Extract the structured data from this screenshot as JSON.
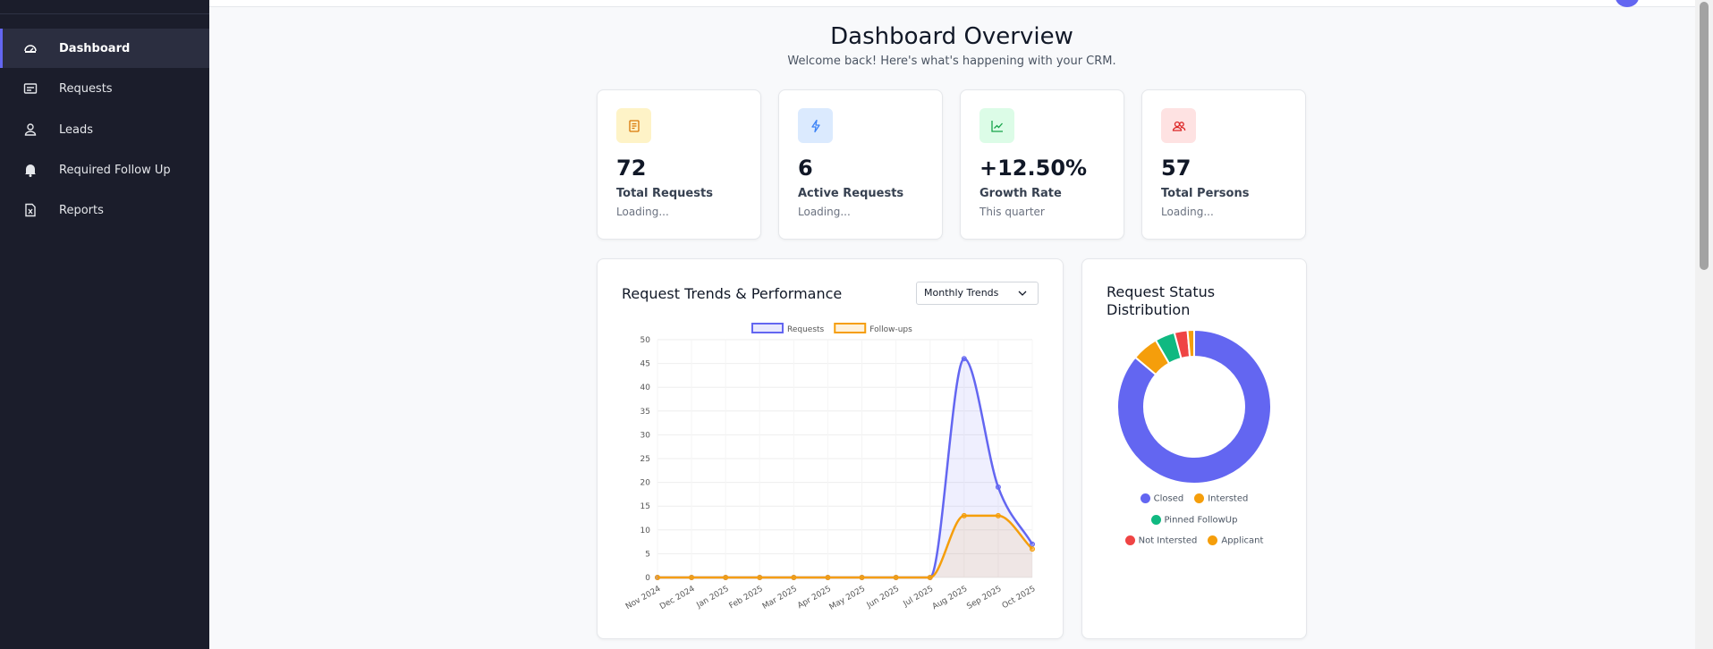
{
  "sidebar": {
    "items": [
      "Dashboard",
      "Requests",
      "Leads",
      "Required Follow Up",
      "Reports"
    ]
  },
  "header": {
    "title": "Dashboard Overview",
    "subtitle": "Welcome back! Here's what's happening with your CRM."
  },
  "stats": [
    {
      "value": "72",
      "label": "Total Requests",
      "note": "Loading..."
    },
    {
      "value": "6",
      "label": "Active Requests",
      "note": "Loading..."
    },
    {
      "value": "+12.50%",
      "label": "Growth Rate",
      "note": "This quarter"
    },
    {
      "value": "57",
      "label": "Total Persons",
      "note": "Loading..."
    }
  ],
  "chart_data": [
    {
      "type": "line",
      "title": "Request Trends & Performance",
      "control": "Monthly Trends",
      "categories": [
        "Nov 2024",
        "Dec 2024",
        "Jan 2025",
        "Feb 2025",
        "Mar 2025",
        "Apr 2025",
        "May 2025",
        "Jun 2025",
        "Jul 2025",
        "Aug 2025",
        "Sep 2025",
        "Oct 2025"
      ],
      "series": [
        {
          "name": "Requests",
          "color": "#6366f1",
          "values": [
            0,
            0,
            0,
            0,
            0,
            0,
            0,
            0,
            0,
            46,
            19,
            7
          ]
        },
        {
          "name": "Follow-ups",
          "color": "#f59e0b",
          "values": [
            0,
            0,
            0,
            0,
            0,
            0,
            0,
            0,
            0,
            13,
            13,
            6
          ]
        }
      ],
      "ylim": [
        0,
        50
      ],
      "yticks": [
        0,
        5,
        10,
        15,
        20,
        25,
        30,
        35,
        40,
        45,
        50
      ],
      "grid": true,
      "legend": "top"
    },
    {
      "type": "doughnut",
      "title": "Request Status Distribution",
      "categories": [
        "Closed",
        "Intersted",
        "Pinned FollowUp",
        "Not Intersted",
        "Applicant"
      ],
      "values": [
        62,
        4,
        3,
        2,
        1
      ],
      "colors": [
        "#6366f1",
        "#f59e0b",
        "#10b981",
        "#ef4444",
        "#f59e0b"
      ],
      "legend": "bottom"
    }
  ]
}
